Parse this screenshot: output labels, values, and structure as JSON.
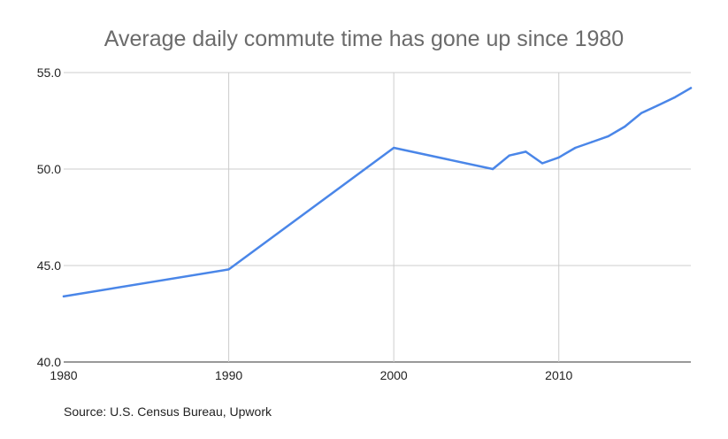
{
  "chart_data": {
    "type": "line",
    "title": "Average daily commute time has gone up since 1980",
    "source": "Source: U.S. Census Bureau, Upwork",
    "xlabel": "",
    "ylabel": "",
    "xlim": [
      1980,
      2018
    ],
    "ylim": [
      40,
      55
    ],
    "x_ticks": [
      "1980",
      "1990",
      "2000",
      "2010"
    ],
    "y_ticks": [
      "40.0",
      "45.0",
      "50.0",
      "55.0"
    ],
    "grid": true,
    "legend": "none",
    "series": [
      {
        "color": "#4a86e8",
        "x": [
          1980,
          1990,
          2000,
          2006,
          2007,
          2008,
          2009,
          2010,
          2011,
          2012,
          2013,
          2014,
          2015,
          2016,
          2017,
          2018
        ],
        "y": [
          43.4,
          44.8,
          51.1,
          50.0,
          50.7,
          50.9,
          50.3,
          50.6,
          51.1,
          51.4,
          51.7,
          52.2,
          52.9,
          53.3,
          53.7,
          54.2
        ]
      }
    ]
  }
}
